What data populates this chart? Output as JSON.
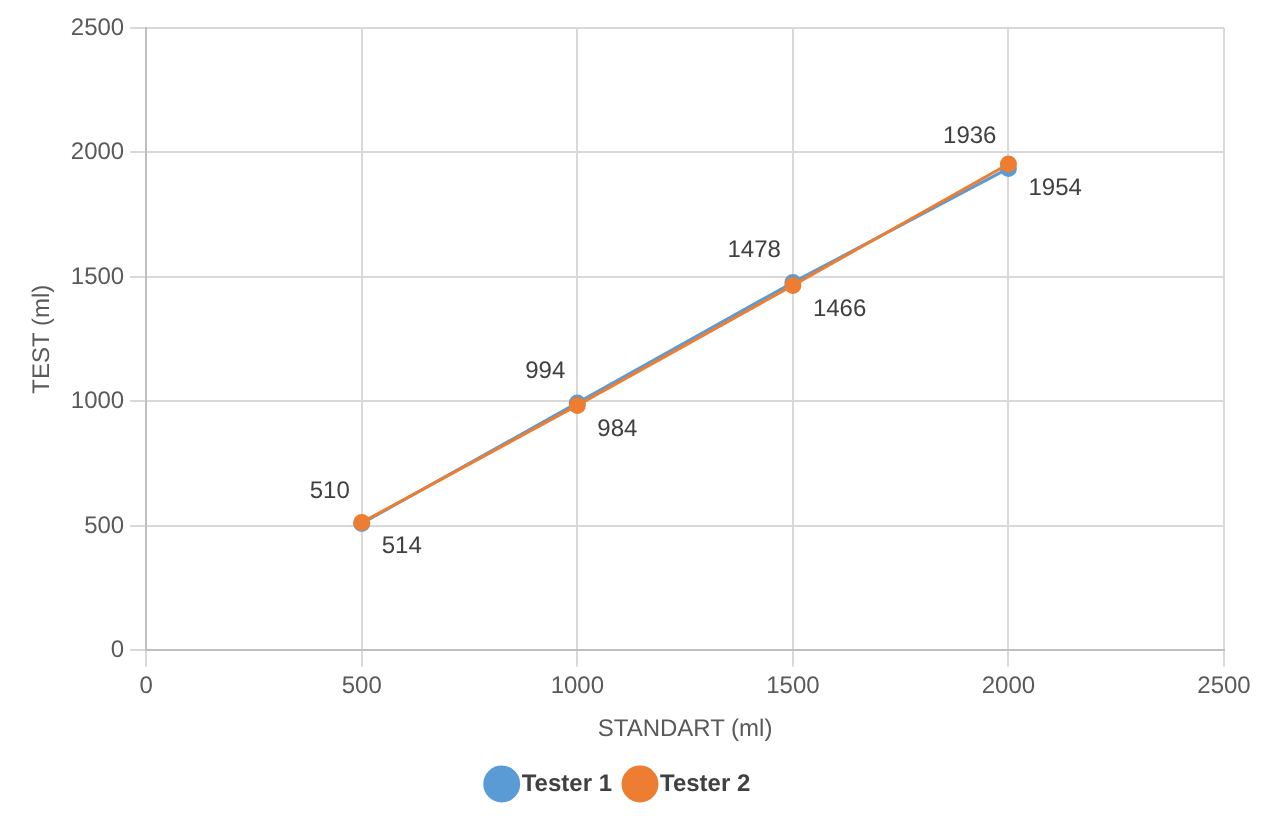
{
  "chart_data": {
    "type": "scatter",
    "xlabel": "STANDART (ml)",
    "ylabel": "TEST (ml)",
    "x": [
      500,
      1000,
      1500,
      2000
    ],
    "series": [
      {
        "name": "Tester 1",
        "color": "#5b9bd5",
        "type": "line",
        "values": [
          510,
          994,
          1478,
          1936
        ]
      },
      {
        "name": "Tester 2",
        "color": "#ed7d31",
        "type": "line",
        "values": [
          514,
          984,
          1466,
          1954
        ]
      }
    ],
    "xlim": [
      0,
      2500
    ],
    "xticks": [
      0,
      500,
      1000,
      1500,
      2000,
      2500
    ],
    "ylim": [
      0,
      2500
    ],
    "yticks": [
      0,
      500,
      1000,
      1500,
      2000,
      2500
    ],
    "grid": true,
    "legend": "bottom",
    "marker": "circle",
    "line_style": "solid",
    "data_labels": true
  }
}
